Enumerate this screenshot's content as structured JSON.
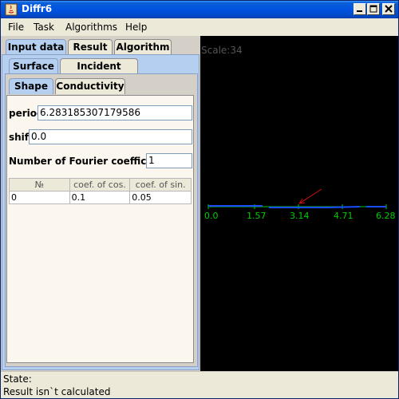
{
  "window": {
    "title": "Diffr6"
  },
  "menu": [
    "File",
    "Task",
    "Algorithms",
    "Help"
  ],
  "tabs_main": [
    "Input data",
    "Result",
    "Algorithm"
  ],
  "tabs_sub": [
    "Surface",
    "Incident Wave"
  ],
  "tabs_sub2": [
    "Shape",
    "Conductivity"
  ],
  "form": {
    "period_label": "period",
    "period_value": "6.283185307179586",
    "shift_label": "shift",
    "shift_value": "0.0",
    "fourier_label": "Number of Fourier coefficients",
    "fourier_value": "1"
  },
  "table": {
    "headers": [
      "№",
      "coef. of cos.",
      "coef. of sin."
    ],
    "rows": [
      [
        "0",
        "0.1",
        "0.05"
      ]
    ]
  },
  "canvas": {
    "scale_text": "Scale:34",
    "ticks": [
      "0.0",
      "1.57",
      "3.14",
      "4.71",
      "6.28"
    ],
    "colors": {
      "axis": "#00cc00",
      "surface": "#1c4cff",
      "arrow": "#cc1111",
      "text": "#00cc00"
    }
  },
  "status": {
    "line1": "State:",
    "line2": "Result isn`t calculated"
  }
}
